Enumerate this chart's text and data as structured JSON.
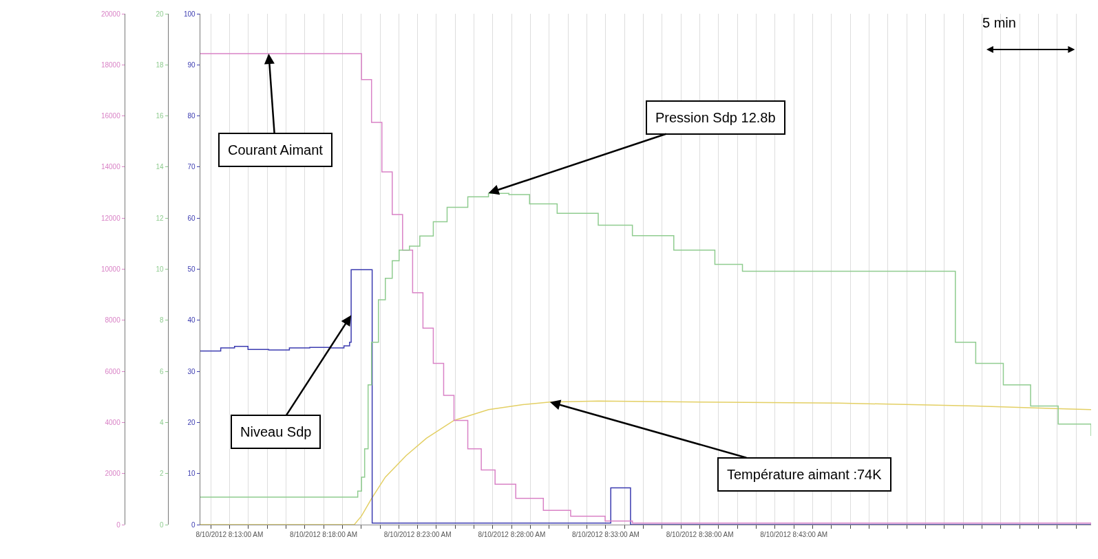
{
  "chart_data": {
    "type": "step",
    "xlim": [
      "2012-08-10T08:11:26",
      "2012-08-10T08:58:48"
    ],
    "xticks": [
      {
        "value": "2012-08-10T08:12",
        "label": null
      },
      {
        "value": "2012-08-10T08:13",
        "label": "8/10/2012 8:13:00 AM"
      },
      {
        "value": "2012-08-10T08:14",
        "label": null
      },
      {
        "value": "2012-08-10T08:15",
        "label": null
      },
      {
        "value": "2012-08-10T08:16",
        "label": null
      },
      {
        "value": "2012-08-10T08:17",
        "label": null
      },
      {
        "value": "2012-08-10T08:18",
        "label": "8/10/2012 8:18:00 AM"
      },
      {
        "value": "2012-08-10T08:19",
        "label": null
      },
      {
        "value": "2012-08-10T08:20",
        "label": null
      },
      {
        "value": "2012-08-10T08:21",
        "label": null
      },
      {
        "value": "2012-08-10T08:22",
        "label": null
      },
      {
        "value": "2012-08-10T08:23",
        "label": "8/10/2012 8:23:00 AM"
      },
      {
        "value": "2012-08-10T08:24",
        "label": null
      },
      {
        "value": "2012-08-10T08:25",
        "label": null
      },
      {
        "value": "2012-08-10T08:26",
        "label": null
      },
      {
        "value": "2012-08-10T08:27",
        "label": null
      },
      {
        "value": "2012-08-10T08:28",
        "label": "8/10/2012 8:28:00 AM"
      },
      {
        "value": "2012-08-10T08:29",
        "label": null
      },
      {
        "value": "2012-08-10T08:30",
        "label": null
      },
      {
        "value": "2012-08-10T08:31",
        "label": null
      },
      {
        "value": "2012-08-10T08:32",
        "label": null
      },
      {
        "value": "2012-08-10T08:33",
        "label": "8/10/2012 8:33:00 AM"
      },
      {
        "value": "2012-08-10T08:34",
        "label": null
      },
      {
        "value": "2012-08-10T08:35",
        "label": null
      },
      {
        "value": "2012-08-10T08:36",
        "label": null
      },
      {
        "value": "2012-08-10T08:37",
        "label": null
      },
      {
        "value": "2012-08-10T08:38",
        "label": "8/10/2012 8:38:00 AM"
      },
      {
        "value": "2012-08-10T08:39",
        "label": null
      },
      {
        "value": "2012-08-10T08:40",
        "label": null
      },
      {
        "value": "2012-08-10T08:41",
        "label": null
      },
      {
        "value": "2012-08-10T08:42",
        "label": null
      },
      {
        "value": "2012-08-10T08:43",
        "label": "8/10/2012 8:43:00 AM"
      },
      {
        "value": "2012-08-10T08:44",
        "label": null
      },
      {
        "value": "2012-08-10T08:45",
        "label": null
      },
      {
        "value": "2012-08-10T08:46",
        "label": null
      },
      {
        "value": "2012-08-10T08:47",
        "label": null
      },
      {
        "value": "2012-08-10T08:48",
        "label": null
      },
      {
        "value": "2012-08-10T08:49",
        "label": null
      },
      {
        "value": "2012-08-10T08:50",
        "label": null
      },
      {
        "value": "2012-08-10T08:51",
        "label": null
      },
      {
        "value": "2012-08-10T08:52",
        "label": null
      },
      {
        "value": "2012-08-10T08:53",
        "label": null
      },
      {
        "value": "2012-08-10T08:54",
        "label": null
      },
      {
        "value": "2012-08-10T08:55",
        "label": null
      },
      {
        "value": "2012-08-10T08:56",
        "label": null
      },
      {
        "value": "2012-08-10T08:57",
        "label": null
      },
      {
        "value": "2012-08-10T08:58",
        "label": null
      }
    ],
    "ylim": [
      0,
      100
    ],
    "yticks": [
      0,
      10,
      20,
      30,
      40,
      50,
      60,
      70,
      80,
      90,
      100
    ],
    "y2lim": [
      0,
      20000
    ],
    "y2ticks": [
      0,
      2000,
      4000,
      6000,
      8000,
      10000,
      12000,
      14000,
      16000,
      18000,
      20000
    ],
    "y3lim": [
      0,
      20
    ],
    "y3ticks": [
      0,
      2,
      4,
      6,
      8,
      10,
      12,
      14,
      16,
      18,
      20
    ],
    "grid": "x",
    "series": [
      {
        "axis": "y2",
        "color": "#d982c6",
        "x": [
          "2012-08-10T08:11:26",
          "2012-08-10T08:19:32",
          "2012-08-10T08:20:01",
          "2012-08-10T08:20:33",
          "2012-08-10T08:21:06",
          "2012-08-10T08:21:39",
          "2012-08-10T08:22:12",
          "2012-08-10T08:22:44",
          "2012-08-10T08:23:17",
          "2012-08-10T08:23:50",
          "2012-08-10T08:24:23",
          "2012-08-10T08:24:56",
          "2012-08-10T08:25:40",
          "2012-08-10T08:26:23",
          "2012-08-10T08:27:07",
          "2012-08-10T08:28:13",
          "2012-08-10T08:29:41",
          "2012-08-10T08:31:08",
          "2012-08-10T08:32:58",
          "2012-08-10T08:34:25",
          "2012-08-10T08:58:48"
        ],
        "values": [
          18440,
          18440,
          17420,
          15750,
          13810,
          12140,
          10750,
          9080,
          7690,
          6310,
          5060,
          4080,
          2970,
          2140,
          1580,
          1030,
          560,
          330,
          140,
          60,
          0
        ]
      },
      {
        "axis": "y3",
        "color": "#8fcc8f",
        "x": [
          "2012-08-10T08:11:26",
          "2012-08-10T08:19:28",
          "2012-08-10T08:19:49",
          "2012-08-10T08:20:01",
          "2012-08-10T08:20:11",
          "2012-08-10T08:20:22",
          "2012-08-10T08:20:33",
          "2012-08-10T08:20:55",
          "2012-08-10T08:21:17",
          "2012-08-10T08:21:39",
          "2012-08-10T08:22:01",
          "2012-08-10T08:22:34",
          "2012-08-10T08:23:07",
          "2012-08-10T08:23:50",
          "2012-08-10T08:24:34",
          "2012-08-10T08:25:40",
          "2012-08-10T08:26:46",
          "2012-08-10T08:27:51",
          "2012-08-10T08:28:57",
          "2012-08-10T08:30:25",
          "2012-08-10T08:32:36",
          "2012-08-10T08:34:25",
          "2012-08-10T08:36:37",
          "2012-08-10T08:38:48",
          "2012-08-10T08:40:16",
          "2012-08-10T08:51:35",
          "2012-08-10T08:52:40",
          "2012-08-10T08:54:08",
          "2012-08-10T08:55:35",
          "2012-08-10T08:57:03",
          "2012-08-10T08:58:48"
        ],
        "values": [
          1.08,
          1.08,
          1.31,
          1.86,
          2.97,
          5.47,
          7.14,
          8.8,
          9.64,
          10.33,
          10.75,
          10.9,
          11.3,
          11.86,
          12.42,
          12.83,
          12.97,
          12.92,
          12.56,
          12.19,
          11.72,
          11.31,
          10.75,
          10.19,
          9.92,
          7.14,
          6.31,
          5.47,
          4.64,
          3.94,
          3.47
        ]
      },
      {
        "type": "line",
        "color": "#e3cf63",
        "x": [
          "2012-08-10T08:11:26",
          "2012-08-10T08:19:38",
          "2012-08-10T08:20:01",
          "2012-08-10T08:20:33",
          "2012-08-10T08:21:17",
          "2012-08-10T08:22:23",
          "2012-08-10T08:23:28",
          "2012-08-10T08:24:56",
          "2012-08-10T08:26:46",
          "2012-08-10T08:28:35",
          "2012-08-10T08:30:02",
          "2012-08-10T08:32:36",
          "2012-08-10T08:38:04",
          "2012-08-10T08:45:22",
          "2012-08-10T08:52:40",
          "2012-08-10T08:58:48"
        ],
        "values": [
          0,
          0,
          1.7,
          5.1,
          9.3,
          13.5,
          16.9,
          20.4,
          22.5,
          23.5,
          24.0,
          24.2,
          24.0,
          23.8,
          23.2,
          22.5
        ]
      },
      {
        "color": "#3b3bb0",
        "x": [
          "2012-08-10T08:11:26",
          "2012-08-10T08:12:32",
          "2012-08-10T08:13:16",
          "2012-08-10T08:13:59",
          "2012-08-10T08:15:05",
          "2012-08-10T08:16:11",
          "2012-08-10T08:17:16",
          "2012-08-10T08:18:22",
          "2012-08-10T08:19:05",
          "2012-08-10T08:19:23",
          "2012-08-10T08:19:28",
          "2012-08-10T08:20:35",
          "2012-08-10T08:33:16",
          "2012-08-10T08:34:19",
          "2012-08-10T08:58:48"
        ],
        "values": [
          34.0,
          34.6,
          34.9,
          34.3,
          34.2,
          34.6,
          34.7,
          34.6,
          35.0,
          35.7,
          49.9,
          0.3,
          7.2,
          0,
          0
        ]
      }
    ],
    "annotations": [
      {
        "text": "Courant Aimant",
        "x": "2012-08-10T08:15:05",
        "y": 92.2
      },
      {
        "text": "Pression Sdp 12.8b",
        "x": "2012-08-10T08:26:46",
        "y": 64.9
      },
      {
        "text": "Niveau Sdp",
        "x": "2012-08-10T08:19:28",
        "y": 41
      },
      {
        "text": "Température aimant :74K",
        "x": "2012-08-10T08:30:02",
        "y": 24.0
      },
      "5 min"
    ]
  }
}
